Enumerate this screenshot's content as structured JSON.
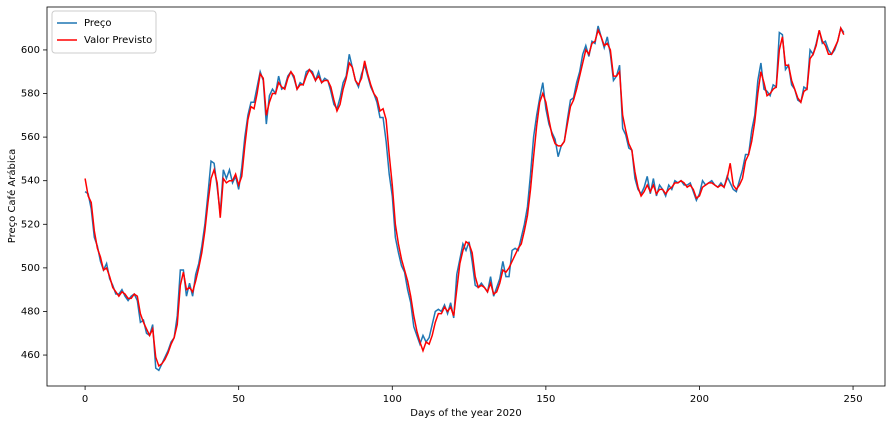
{
  "chart_data": {
    "type": "line",
    "x_label": "Days of the year 2020",
    "y_label": "Preço Café Arábica",
    "xlim": [
      -12.4,
      260.4
    ],
    "ylim": [
      445.8,
      619.7
    ],
    "xticks": [
      0,
      50,
      100,
      150,
      200,
      250
    ],
    "yticks": [
      460,
      480,
      500,
      520,
      540,
      560,
      580,
      600
    ],
    "legend": "upper left",
    "x": [
      0,
      1,
      2,
      3,
      4,
      5,
      6,
      7,
      8,
      9,
      10,
      11,
      12,
      13,
      14,
      15,
      16,
      17,
      18,
      19,
      20,
      21,
      22,
      23,
      24,
      25,
      26,
      27,
      28,
      29,
      30,
      31,
      32,
      33,
      34,
      35,
      36,
      37,
      38,
      39,
      40,
      41,
      42,
      43,
      44,
      45,
      46,
      47,
      48,
      49,
      50,
      51,
      52,
      53,
      54,
      55,
      56,
      57,
      58,
      59,
      60,
      61,
      62,
      63,
      64,
      65,
      66,
      67,
      68,
      69,
      70,
      71,
      72,
      73,
      74,
      75,
      76,
      77,
      78,
      79,
      80,
      81,
      82,
      83,
      84,
      85,
      86,
      87,
      88,
      89,
      90,
      91,
      92,
      93,
      94,
      95,
      96,
      97,
      98,
      99,
      100,
      101,
      102,
      103,
      104,
      105,
      106,
      107,
      108,
      109,
      110,
      111,
      112,
      113,
      114,
      115,
      116,
      117,
      118,
      119,
      120,
      121,
      122,
      123,
      124,
      125,
      126,
      127,
      128,
      129,
      130,
      131,
      132,
      133,
      134,
      135,
      136,
      137,
      138,
      139,
      140,
      141,
      142,
      143,
      144,
      145,
      146,
      147,
      148,
      149,
      150,
      151,
      152,
      153,
      154,
      155,
      156,
      157,
      158,
      159,
      160,
      161,
      162,
      163,
      164,
      165,
      166,
      167,
      168,
      169,
      170,
      171,
      172,
      173,
      174,
      175,
      176,
      177,
      178,
      179,
      180,
      181,
      182,
      183,
      184,
      185,
      186,
      187,
      188,
      189,
      190,
      191,
      192,
      193,
      194,
      195,
      196,
      197,
      198,
      199,
      200,
      201,
      202,
      203,
      204,
      205,
      206,
      207,
      208,
      209,
      210,
      211,
      212,
      213,
      214,
      215,
      216,
      217,
      218,
      219,
      220,
      221,
      222,
      223,
      224,
      225,
      226,
      227,
      228,
      229,
      230,
      231,
      232,
      233,
      234,
      235,
      236,
      237,
      238,
      239,
      240,
      241,
      242,
      243,
      244,
      245,
      246,
      247
    ],
    "series": [
      {
        "name": "Preço",
        "color": "#1f77b4",
        "values": [
          535,
          534,
          527,
          514,
          510,
          503,
          499,
          502,
          495,
          492,
          488,
          488,
          490,
          487,
          485,
          487,
          488,
          485,
          475,
          476,
          470,
          469,
          474,
          454,
          453,
          456,
          459,
          462,
          466,
          468,
          478,
          499,
          499,
          487,
          493,
          487,
          497,
          502,
          510,
          520,
          534,
          549,
          548,
          537,
          525,
          545,
          541,
          545,
          539,
          542,
          536,
          546,
          560,
          570,
          576,
          576,
          583,
          590,
          586,
          566,
          579,
          582,
          580,
          588,
          582,
          583,
          588,
          590,
          587,
          582,
          585,
          584,
          590,
          591,
          590,
          586,
          590,
          585,
          587,
          586,
          581,
          575,
          573,
          578,
          585,
          588,
          598,
          592,
          586,
          583,
          589,
          593,
          588,
          583,
          580,
          576,
          569,
          569,
          558,
          543,
          533,
          514,
          507,
          501,
          498,
          490,
          484,
          473,
          469,
          465,
          469,
          466,
          468,
          474,
          480,
          481,
          480,
          483,
          479,
          484,
          477,
          497,
          504,
          511,
          508,
          512,
          503,
          492,
          491,
          493,
          491,
          489,
          496,
          487,
          491,
          495,
          503,
          496,
          496,
          508,
          509,
          508,
          514,
          520,
          528,
          543,
          560,
          570,
          578,
          585,
          573,
          566,
          562,
          559,
          551,
          556,
          558,
          568,
          577,
          578,
          585,
          590,
          598,
          602,
          597,
          604,
          603,
          611,
          606,
          601,
          606,
          598,
          586,
          588,
          593,
          564,
          561,
          555,
          554,
          541,
          536,
          534,
          537,
          542,
          534,
          541,
          533,
          538,
          536,
          533,
          538,
          536,
          540,
          539,
          540,
          538,
          538,
          539,
          535,
          531,
          534,
          540,
          538,
          539,
          540,
          538,
          537,
          539,
          537,
          542,
          539,
          536,
          535,
          540,
          545,
          552,
          552,
          563,
          570,
          586,
          594,
          582,
          581,
          579,
          584,
          583,
          608,
          607,
          591,
          593,
          584,
          582,
          577,
          576,
          583,
          582,
          600,
          598,
          603,
          609,
          603,
          604,
          600,
          598,
          600,
          604,
          610,
          608
        ]
      },
      {
        "name": "Valor Previsto",
        "color": "#ff0000",
        "values": [
          541,
          533,
          530,
          517,
          509,
          505,
          499,
          500,
          496,
          491,
          489,
          487,
          489,
          488,
          486,
          486,
          488,
          487,
          479,
          475,
          472,
          469,
          472,
          459,
          455,
          456,
          458,
          461,
          465,
          468,
          474,
          492,
          498,
          490,
          491,
          489,
          494,
          500,
          507,
          517,
          530,
          541,
          545,
          539,
          523,
          541,
          539,
          540,
          540,
          543,
          538,
          542,
          556,
          568,
          574,
          573,
          580,
          589,
          587,
          570,
          576,
          580,
          580,
          585,
          583,
          582,
          587,
          590,
          588,
          582,
          584,
          584,
          588,
          591,
          589,
          586,
          588,
          585,
          586,
          586,
          583,
          577,
          572,
          575,
          582,
          587,
          594,
          592,
          586,
          584,
          587,
          595,
          589,
          584,
          580,
          578,
          572,
          573,
          568,
          552,
          538,
          520,
          511,
          504,
          499,
          494,
          487,
          478,
          471,
          466,
          462,
          466,
          465,
          469,
          475,
          479,
          479,
          482,
          480,
          482,
          478,
          490,
          502,
          508,
          512,
          511,
          507,
          496,
          491,
          492,
          491,
          489,
          493,
          488,
          489,
          493,
          499,
          498,
          500,
          503,
          506,
          509,
          511,
          517,
          524,
          536,
          551,
          565,
          576,
          580,
          576,
          568,
          561,
          557,
          556,
          556,
          558,
          566,
          574,
          577,
          582,
          588,
          594,
          600,
          598,
          603,
          604,
          609,
          606,
          602,
          603,
          600,
          588,
          588,
          590,
          570,
          563,
          557,
          554,
          544,
          537,
          533,
          535,
          538,
          535,
          538,
          534,
          536,
          536,
          534,
          536,
          537,
          539,
          539,
          540,
          539,
          537,
          538,
          536,
          532,
          533,
          537,
          538,
          539,
          539,
          538,
          537,
          538,
          537,
          541,
          548,
          538,
          536,
          538,
          541,
          549,
          552,
          558,
          567,
          580,
          590,
          585,
          579,
          580,
          582,
          583,
          600,
          606,
          593,
          593,
          586,
          582,
          578,
          576,
          581,
          582,
          596,
          598,
          602,
          609,
          604,
          602,
          598,
          598,
          601,
          604,
          610,
          607
        ]
      }
    ]
  }
}
